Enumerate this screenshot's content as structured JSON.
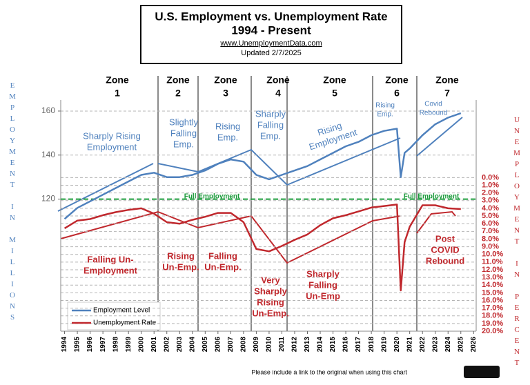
{
  "chart_data": {
    "type": "line",
    "title": "U.S. Employment vs. Unemployment Rate",
    "subtitle": "1994 - Present",
    "source": "www.UnemploymentData.com",
    "updated": "Updated 2/7/2025",
    "y_label": "EMPLOYMENT IN MILLIONS",
    "y2_label": "UNEMPLOYMENT IN PERCENT",
    "footer": "Please include a link to the original when using this chart",
    "x": [
      1994,
      1995,
      1996,
      1997,
      1998,
      1999,
      2000,
      2001,
      2002,
      2003,
      2004,
      2005,
      2006,
      2007,
      2008,
      2009,
      2010,
      2011,
      2012,
      2013,
      2014,
      2015,
      2016,
      2017,
      2018,
      2019,
      2020,
      2020.3,
      2020.6,
      2021,
      2022,
      2023,
      2024,
      2025
    ],
    "series": [
      {
        "name": "Employment Level",
        "color": "#4f81bd",
        "values": [
          111,
          116,
          119,
          122,
          125,
          128,
          131,
          132,
          130,
          130,
          131,
          133,
          136,
          138,
          137,
          131,
          129,
          131,
          133,
          135,
          138,
          141,
          144,
          146,
          149,
          151,
          152,
          130,
          141,
          143,
          149,
          154,
          157,
          159
        ]
      },
      {
        "name": "Unemployment Rate",
        "color": "#c0282d",
        "axis": "y2",
        "values": [
          6.6,
          5.6,
          5.4,
          4.9,
          4.5,
          4.2,
          4.0,
          4.7,
          5.8,
          6.0,
          5.5,
          5.1,
          4.6,
          4.6,
          5.8,
          9.3,
          9.6,
          8.9,
          8.1,
          7.4,
          6.2,
          5.3,
          4.9,
          4.4,
          3.9,
          3.7,
          3.5,
          14.7,
          8.4,
          6.4,
          3.6,
          3.6,
          4.0,
          4.1
        ]
      }
    ],
    "xlim": [
      1993.7,
      2026.2
    ],
    "xticks": [
      1994,
      1995,
      1996,
      1997,
      1998,
      1999,
      2000,
      2001,
      2002,
      2003,
      2004,
      2005,
      2006,
      2007,
      2008,
      2009,
      2010,
      2011,
      2012,
      2013,
      2014,
      2015,
      2016,
      2017,
      2018,
      2019,
      2020,
      2021,
      2022,
      2023,
      2024,
      2025,
      2026
    ],
    "ylim": [
      60,
      165
    ],
    "yticks": [
      120,
      140,
      160
    ],
    "y2lim": [
      -10.1,
      20
    ],
    "y2_inverted": true,
    "y2ticks": [
      {
        "value": 0,
        "label": "0.0%"
      },
      {
        "value": 1,
        "label": "1.0%"
      },
      {
        "value": 2,
        "label": "2.0%"
      },
      {
        "value": 3,
        "label": "3.0%"
      },
      {
        "value": 4,
        "label": "4.0%"
      },
      {
        "value": 5,
        "label": "5.0%"
      },
      {
        "value": 6,
        "label": "6.0%"
      },
      {
        "value": 7,
        "label": "7.0%"
      },
      {
        "value": 8,
        "label": "8.0%"
      },
      {
        "value": 9,
        "label": "9.0%"
      },
      {
        "value": 10,
        "label": "10.0%"
      },
      {
        "value": 11,
        "label": "11.0%"
      },
      {
        "value": 12,
        "label": "12.0%"
      },
      {
        "value": 13,
        "label": "13.0%"
      },
      {
        "value": 14,
        "label": "14.0%"
      },
      {
        "value": 15,
        "label": "15.0%"
      },
      {
        "value": 16,
        "label": "16.0%"
      },
      {
        "value": 17,
        "label": "17.0%"
      },
      {
        "value": 18,
        "label": "18.0%"
      },
      {
        "value": 19,
        "label": "19.0%"
      },
      {
        "value": 20,
        "label": "20.0%"
      }
    ],
    "grid": true,
    "reference_line": {
      "value": 120,
      "color": "#1a9a3a"
    },
    "legend": "bottom-left",
    "zones": [
      {
        "label": "Zone",
        "number": "1"
      },
      {
        "label": "Zone",
        "number": "2"
      },
      {
        "label": "Zone",
        "number": "3"
      },
      {
        "label": "Zone",
        "number": "4"
      },
      {
        "label": "Zone",
        "number": "5"
      },
      {
        "label": "Zone",
        "number": "6"
      },
      {
        "label": "Zone",
        "number": "7"
      }
    ],
    "annotations": [
      {
        "lines": [
          "Sharply Rising",
          "Employment"
        ],
        "color": "#4f81bd"
      },
      {
        "lines": [
          "Slightly",
          "Falling",
          "Emp."
        ],
        "color": "#4f81bd"
      },
      {
        "lines": [
          "Rising",
          "Emp."
        ],
        "color": "#4f81bd"
      },
      {
        "lines": [
          "Sharply",
          "Falling",
          "Emp."
        ],
        "color": "#4f81bd"
      },
      {
        "lines": [
          "Rising",
          "Employment"
        ],
        "color": "#4f81bd"
      },
      {
        "lines": [
          "Rising",
          "Emp."
        ],
        "color": "#4f81bd"
      },
      {
        "lines": [
          "Covid",
          "Rebound"
        ],
        "color": "#4f81bd"
      },
      {
        "lines": [
          "Full  Employment"
        ],
        "color": "#1a9a3a"
      },
      {
        "lines": [
          "Full     Employment"
        ],
        "color": "#1a9a3a"
      },
      {
        "lines": [
          "Falling Un-",
          "Employment"
        ],
        "color": "#c0282d"
      },
      {
        "lines": [
          "Rising",
          "Un-Emp."
        ],
        "color": "#c0282d"
      },
      {
        "lines": [
          "Falling",
          "Un-Emp."
        ],
        "color": "#c0282d"
      },
      {
        "lines": [
          "Very",
          "Sharply",
          "Rising",
          "Un-Emp."
        ],
        "color": "#c0282d"
      },
      {
        "lines": [
          "Sharply",
          "Falling",
          "Un-Emp"
        ],
        "color": "#c0282d"
      },
      {
        "lines": [
          "Post",
          "COVID",
          "Rebound"
        ],
        "color": "#c0282d"
      }
    ]
  }
}
